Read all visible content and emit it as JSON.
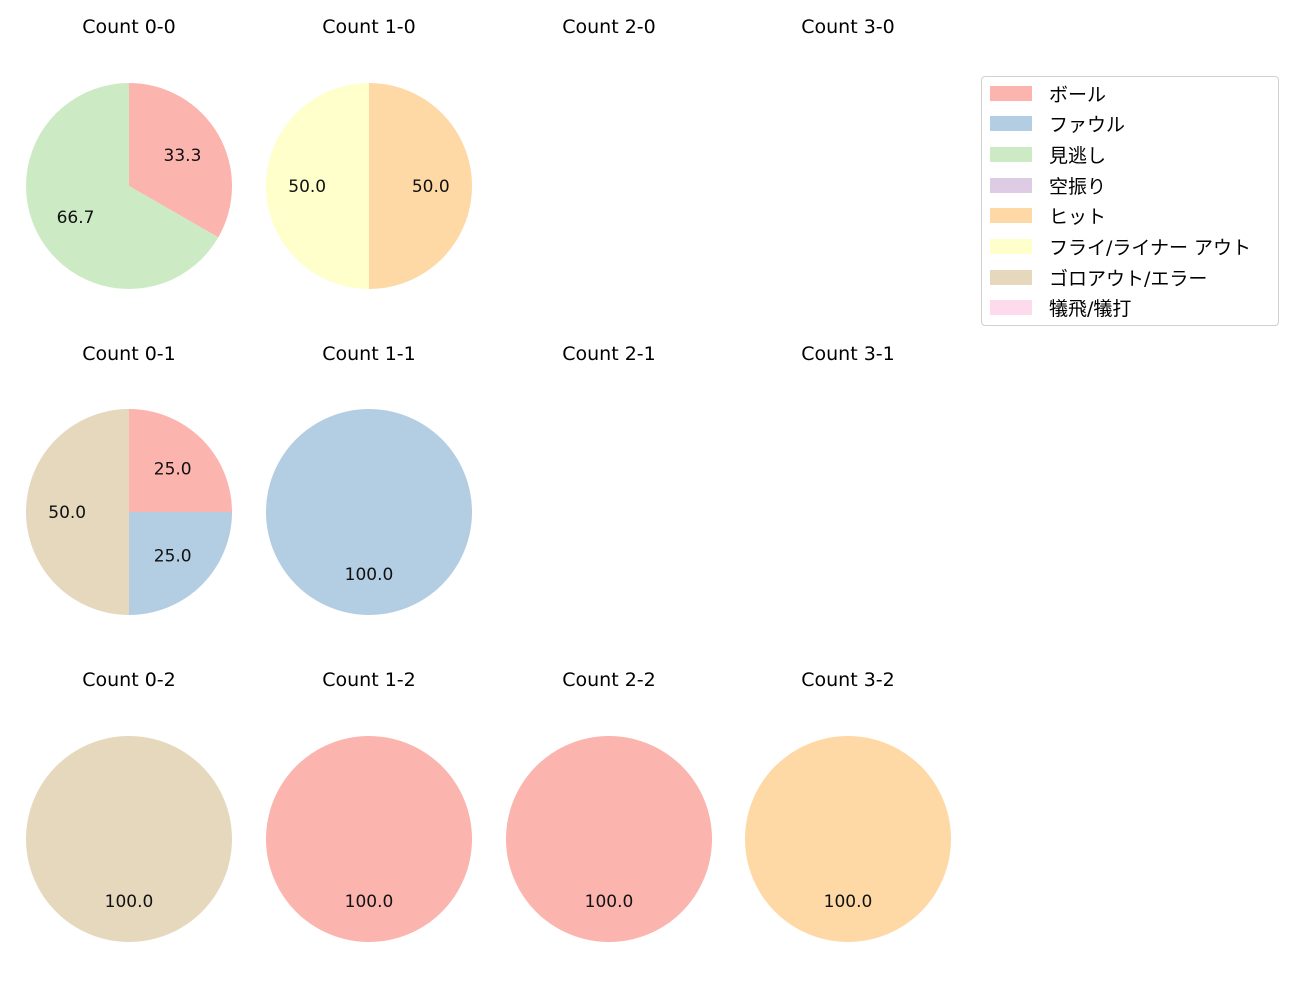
{
  "chart_data": {
    "type": "pie",
    "title": "",
    "legend_position": "upper right",
    "categories": [
      "ボール",
      "ファウル",
      "見逃し",
      "空振り",
      "ヒット",
      "フライ/ライナー アウト",
      "ゴロアウト/エラー",
      "犠飛/犠打"
    ],
    "colors": [
      "#fbb4ae",
      "#b3cde3",
      "#ccebc5",
      "#decbe4",
      "#fed9a6",
      "#ffffcc",
      "#e5d8bd",
      "#fddaec"
    ],
    "charts": [
      {
        "title": "Count 0-0",
        "slices": [
          {
            "label": "ボール",
            "value": 33.3
          },
          {
            "label": "見逃し",
            "value": 66.7
          }
        ]
      },
      {
        "title": "Count 1-0",
        "slices": [
          {
            "label": "ヒット",
            "value": 50.0
          },
          {
            "label": "フライ/ライナー アウト",
            "value": 50.0
          }
        ]
      },
      {
        "title": "Count 2-0",
        "slices": []
      },
      {
        "title": "Count 3-0",
        "slices": []
      },
      {
        "title": "Count 0-1",
        "slices": [
          {
            "label": "ボール",
            "value": 25.0
          },
          {
            "label": "ファウル",
            "value": 25.0
          },
          {
            "label": "ゴロアウト/エラー",
            "value": 50.0
          }
        ]
      },
      {
        "title": "Count 1-1",
        "slices": [
          {
            "label": "ファウル",
            "value": 100.0
          }
        ]
      },
      {
        "title": "Count 2-1",
        "slices": []
      },
      {
        "title": "Count 3-1",
        "slices": []
      },
      {
        "title": "Count 0-2",
        "slices": [
          {
            "label": "ゴロアウト/エラー",
            "value": 100.0
          }
        ]
      },
      {
        "title": "Count 1-2",
        "slices": [
          {
            "label": "ボール",
            "value": 100.0
          }
        ]
      },
      {
        "title": "Count 2-2",
        "slices": [
          {
            "label": "ボール",
            "value": 100.0
          }
        ]
      },
      {
        "title": "Count 3-2",
        "slices": [
          {
            "label": "ヒット",
            "value": 100.0
          }
        ]
      }
    ]
  },
  "panels": [
    {
      "title": "Count 0-0"
    },
    {
      "title": "Count 1-0"
    },
    {
      "title": "Count 2-0"
    },
    {
      "title": "Count 3-0"
    },
    {
      "title": "Count 0-1"
    },
    {
      "title": "Count 1-1"
    },
    {
      "title": "Count 2-1"
    },
    {
      "title": "Count 3-1"
    },
    {
      "title": "Count 0-2"
    },
    {
      "title": "Count 1-2"
    },
    {
      "title": "Count 2-2"
    },
    {
      "title": "Count 3-2"
    }
  ],
  "legend": {
    "items": [
      {
        "label": "ボール",
        "color": "#fbb4ae"
      },
      {
        "label": "ファウル",
        "color": "#b3cde3"
      },
      {
        "label": "見逃し",
        "color": "#ccebc5"
      },
      {
        "label": "空振り",
        "color": "#decbe4"
      },
      {
        "label": "ヒット",
        "color": "#fed9a6"
      },
      {
        "label": "フライ/ライナー アウト",
        "color": "#ffffcc"
      },
      {
        "label": "ゴロアウト/エラー",
        "color": "#e5d8bd"
      },
      {
        "label": "犠飛/犠打",
        "color": "#fddaec"
      }
    ]
  }
}
